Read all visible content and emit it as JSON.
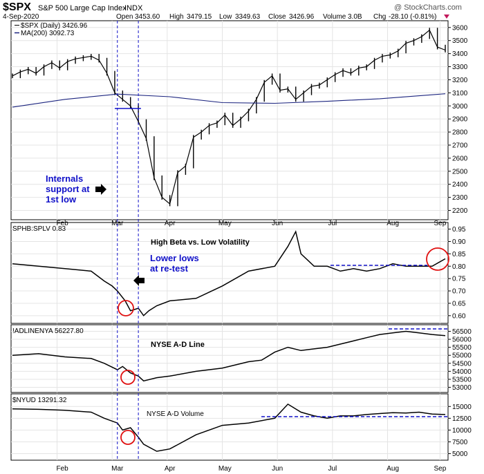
{
  "header": {
    "symbol": "$SPX",
    "description": "S&P 500 Large Cap Index",
    "exchange": "INDX",
    "watermark": "@ StockCharts.com",
    "date": "4-Sep-2020",
    "open_label": "Open",
    "open": "3453.60",
    "high_label": "High",
    "high": "3479.15",
    "low_label": "Low",
    "low": "3349.63",
    "close_label": "Close",
    "close": "3426.96",
    "volume_label": "Volume",
    "volume": "3.0B",
    "chg_label": "Chg",
    "chg": "-28.10 (-0.81%)"
  },
  "colors": {
    "price": "#000000",
    "ma": "#1a237e",
    "annotation": "#1010c8",
    "circle": "#e01010",
    "grid": "#e4e4e4"
  },
  "chart_data": [
    {
      "type": "line",
      "panel": "price",
      "legend": [
        "$SPX (Daily) 3426.96",
        "MA(200) 3092.73"
      ],
      "x_tick_labels": [
        "Feb",
        "Mar",
        "Apr",
        "May",
        "Jun",
        "Jul",
        "Aug",
        "Sep"
      ],
      "y_tick_labels": [
        "3600",
        "3500",
        "3400",
        "3300",
        "3200",
        "3100",
        "3000",
        "2900",
        "2800",
        "2700",
        "2600",
        "2500",
        "2400",
        "2300",
        "2200"
      ],
      "ylim": [
        2150,
        3620
      ],
      "x_day_range": [
        0,
        165
      ],
      "series": [
        {
          "name": "$SPX (Daily) 3426.96",
          "style": "ohlc-bars",
          "x": [
            0,
            3,
            6,
            9,
            12,
            15,
            18,
            21,
            24,
            27,
            30,
            33,
            36,
            39,
            42,
            45,
            48,
            51,
            54,
            57,
            60,
            63,
            66,
            69,
            72,
            75,
            78,
            81,
            84,
            87,
            90,
            93,
            96,
            99,
            102,
            105,
            108,
            111,
            114,
            117,
            120,
            123,
            126,
            129,
            132,
            135,
            138,
            141,
            144,
            147,
            150,
            153,
            156,
            159,
            162,
            165
          ],
          "values": [
            3230,
            3260,
            3280,
            3250,
            3300,
            3330,
            3290,
            3340,
            3360,
            3370,
            3380,
            3350,
            3250,
            3100,
            3050,
            3000,
            2880,
            2750,
            2450,
            2300,
            2250,
            2490,
            2540,
            2760,
            2800,
            2850,
            2870,
            2930,
            2850,
            2900,
            2960,
            3050,
            3180,
            3230,
            3120,
            3130,
            3050,
            3100,
            3150,
            3160,
            3200,
            3240,
            3270,
            3250,
            3290,
            3300,
            3350,
            3380,
            3390,
            3420,
            3480,
            3500,
            3530,
            3580,
            3450,
            3426.96
          ]
        },
        {
          "name": "MA(200) 3092.73",
          "x": [
            0,
            20,
            40,
            60,
            80,
            100,
            120,
            140,
            165
          ],
          "values": [
            2990,
            3050,
            3090,
            3070,
            3025,
            3020,
            3035,
            3055,
            3092.73
          ]
        }
      ],
      "annotation": "Internals support at 1st low"
    },
    {
      "type": "line",
      "panel": "ratio",
      "legend": [
        "SPHB:SPLV 0.83"
      ],
      "title": "High Beta vs. Low Volatility",
      "y_tick_labels": [
        "0.95",
        "0.90",
        "0.85",
        "0.80",
        "0.75",
        "0.70",
        "0.65",
        "0.60"
      ],
      "ylim": [
        0.58,
        0.96
      ],
      "series": [
        {
          "name": "SPHB:SPLV 0.83",
          "x": [
            0,
            10,
            20,
            30,
            35,
            38,
            40,
            43,
            45,
            48,
            50,
            52,
            55,
            60,
            70,
            80,
            90,
            100,
            105,
            108,
            110,
            113,
            115,
            120,
            125,
            130,
            135,
            140,
            145,
            150,
            155,
            160,
            165
          ],
          "values": [
            0.81,
            0.8,
            0.79,
            0.78,
            0.74,
            0.72,
            0.7,
            0.66,
            0.62,
            0.63,
            0.6,
            0.62,
            0.64,
            0.66,
            0.67,
            0.72,
            0.78,
            0.8,
            0.88,
            0.94,
            0.85,
            0.82,
            0.8,
            0.8,
            0.78,
            0.79,
            0.78,
            0.79,
            0.81,
            0.8,
            0.8,
            0.8,
            0.83
          ]
        }
      ],
      "annotation": "Lower lows at re-test"
    },
    {
      "type": "line",
      "panel": "adline",
      "legend": [
        "!ADLINENYA 56227.80"
      ],
      "title": "NYSE A-D Line",
      "y_tick_labels": [
        "56500",
        "56000",
        "55500",
        "55000",
        "54500",
        "54000",
        "53500",
        "53000"
      ],
      "ylim": [
        52850,
        56650
      ],
      "series": [
        {
          "name": "!ADLINENYA 56227.80",
          "x": [
            0,
            10,
            20,
            30,
            35,
            40,
            42,
            45,
            48,
            50,
            55,
            60,
            70,
            80,
            90,
            95,
            100,
            105,
            110,
            115,
            120,
            125,
            130,
            135,
            140,
            145,
            150,
            155,
            160,
            165
          ],
          "values": [
            55000,
            55100,
            54900,
            54800,
            54500,
            54100,
            54300,
            53900,
            53700,
            53400,
            53600,
            53700,
            54000,
            54200,
            54600,
            54700,
            55200,
            55500,
            55300,
            55400,
            55500,
            55700,
            55900,
            56100,
            56300,
            56400,
            56500,
            56400,
            56300,
            56227.8
          ]
        }
      ]
    },
    {
      "type": "line",
      "panel": "advolume",
      "legend": [
        "$NYUD 13291.32"
      ],
      "title": "NYSE A-D Volume",
      "y_tick_labels": [
        "15000",
        "12500",
        "10000",
        "7500",
        "5000"
      ],
      "ylim": [
        4200,
        16800
      ],
      "series": [
        {
          "name": "$NYUD 13291.32",
          "x": [
            0,
            10,
            20,
            30,
            35,
            40,
            42,
            45,
            48,
            50,
            55,
            60,
            70,
            80,
            90,
            100,
            105,
            110,
            115,
            120,
            125,
            130,
            135,
            140,
            145,
            150,
            155,
            160,
            165
          ],
          "values": [
            14500,
            14400,
            14200,
            13800,
            12500,
            11500,
            10000,
            10500,
            8500,
            7000,
            5500,
            6000,
            9000,
            11000,
            11500,
            12500,
            15500,
            13800,
            13000,
            12500,
            13000,
            13000,
            13300,
            13500,
            13700,
            13600,
            13800,
            13400,
            13291.32
          ]
        }
      ]
    }
  ]
}
